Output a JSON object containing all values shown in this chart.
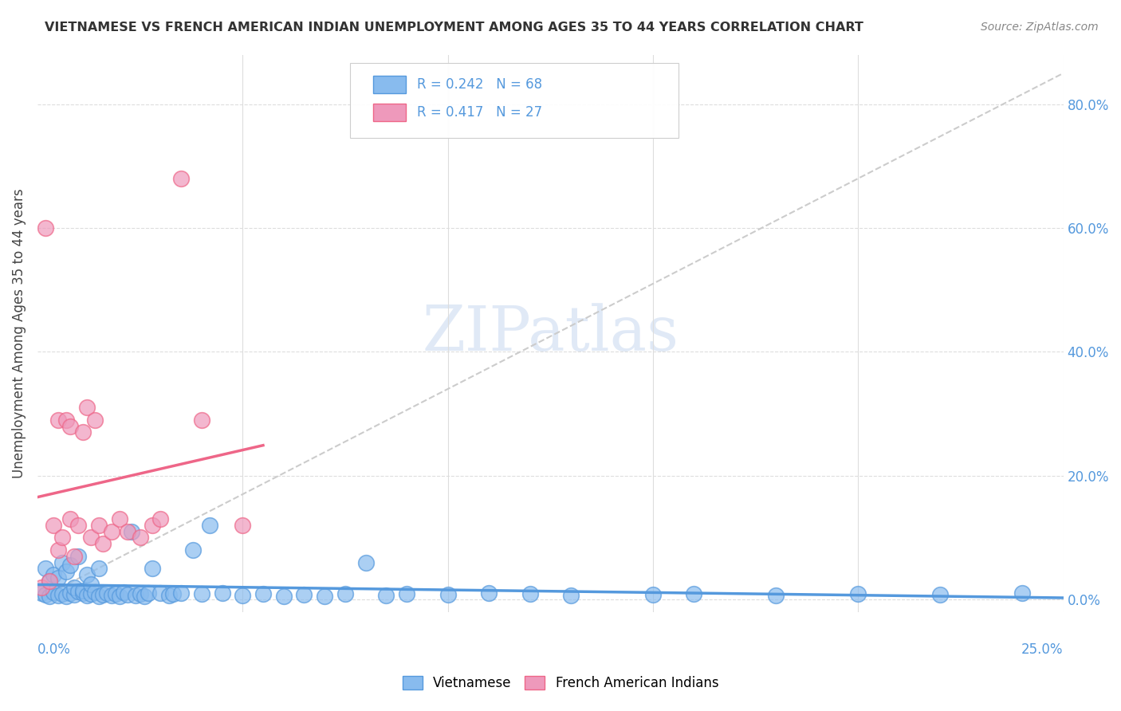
{
  "title": "VIETNAMESE VS FRENCH AMERICAN INDIAN UNEMPLOYMENT AMONG AGES 35 TO 44 YEARS CORRELATION CHART",
  "source": "Source: ZipAtlas.com",
  "ylabel": "Unemployment Among Ages 35 to 44 years",
  "ylabel_right_ticks": [
    "0.0%",
    "20.0%",
    "40.0%",
    "60.0%",
    "80.0%"
  ],
  "ylabel_right_vals": [
    0.0,
    0.2,
    0.4,
    0.6,
    0.8
  ],
  "xmin": 0.0,
  "xmax": 0.25,
  "ymin": -0.02,
  "ymax": 0.88,
  "watermark": "ZIPatlas",
  "blue_color": "#5599dd",
  "pink_color": "#ee6688",
  "scatter_blue_color": "#88bbee",
  "scatter_pink_color": "#ee99bb",
  "ref_line_color": "#cccccc",
  "grid_color": "#dddddd",
  "legend1_label1": "R = 0.242   N = 68",
  "legend1_label2": "R = 0.417   N = 27",
  "legend2_label1": "Vietnamese",
  "legend2_label2": "French American Indians",
  "viet_x": [
    0.001,
    0.002,
    0.002,
    0.003,
    0.003,
    0.004,
    0.004,
    0.005,
    0.005,
    0.006,
    0.006,
    0.007,
    0.007,
    0.008,
    0.008,
    0.009,
    0.009,
    0.01,
    0.01,
    0.011,
    0.011,
    0.012,
    0.012,
    0.013,
    0.013,
    0.014,
    0.015,
    0.015,
    0.016,
    0.017,
    0.018,
    0.019,
    0.02,
    0.021,
    0.022,
    0.023,
    0.024,
    0.025,
    0.026,
    0.027,
    0.028,
    0.03,
    0.032,
    0.033,
    0.035,
    0.038,
    0.04,
    0.042,
    0.045,
    0.05,
    0.055,
    0.06,
    0.065,
    0.07,
    0.075,
    0.08,
    0.085,
    0.09,
    0.1,
    0.11,
    0.12,
    0.13,
    0.15,
    0.16,
    0.18,
    0.2,
    0.22,
    0.24
  ],
  "viet_y": [
    0.01,
    0.008,
    0.05,
    0.005,
    0.03,
    0.012,
    0.04,
    0.007,
    0.035,
    0.009,
    0.06,
    0.006,
    0.045,
    0.011,
    0.055,
    0.008,
    0.02,
    0.013,
    0.07,
    0.01,
    0.015,
    0.007,
    0.04,
    0.009,
    0.025,
    0.012,
    0.006,
    0.05,
    0.008,
    0.01,
    0.007,
    0.009,
    0.005,
    0.012,
    0.008,
    0.11,
    0.007,
    0.009,
    0.006,
    0.011,
    0.05,
    0.01,
    0.007,
    0.009,
    0.011,
    0.08,
    0.009,
    0.12,
    0.01,
    0.007,
    0.009,
    0.006,
    0.008,
    0.005,
    0.009,
    0.06,
    0.007,
    0.009,
    0.008,
    0.01,
    0.009,
    0.007,
    0.008,
    0.009,
    0.007,
    0.009,
    0.008,
    0.01
  ],
  "french_x": [
    0.001,
    0.002,
    0.003,
    0.004,
    0.005,
    0.005,
    0.006,
    0.007,
    0.008,
    0.008,
    0.009,
    0.01,
    0.011,
    0.012,
    0.013,
    0.014,
    0.015,
    0.016,
    0.018,
    0.02,
    0.022,
    0.025,
    0.028,
    0.03,
    0.035,
    0.04,
    0.05
  ],
  "french_y": [
    0.02,
    0.6,
    0.03,
    0.12,
    0.08,
    0.29,
    0.1,
    0.29,
    0.28,
    0.13,
    0.07,
    0.12,
    0.27,
    0.31,
    0.1,
    0.29,
    0.12,
    0.09,
    0.11,
    0.13,
    0.11,
    0.1,
    0.12,
    0.13,
    0.68,
    0.29,
    0.12
  ]
}
